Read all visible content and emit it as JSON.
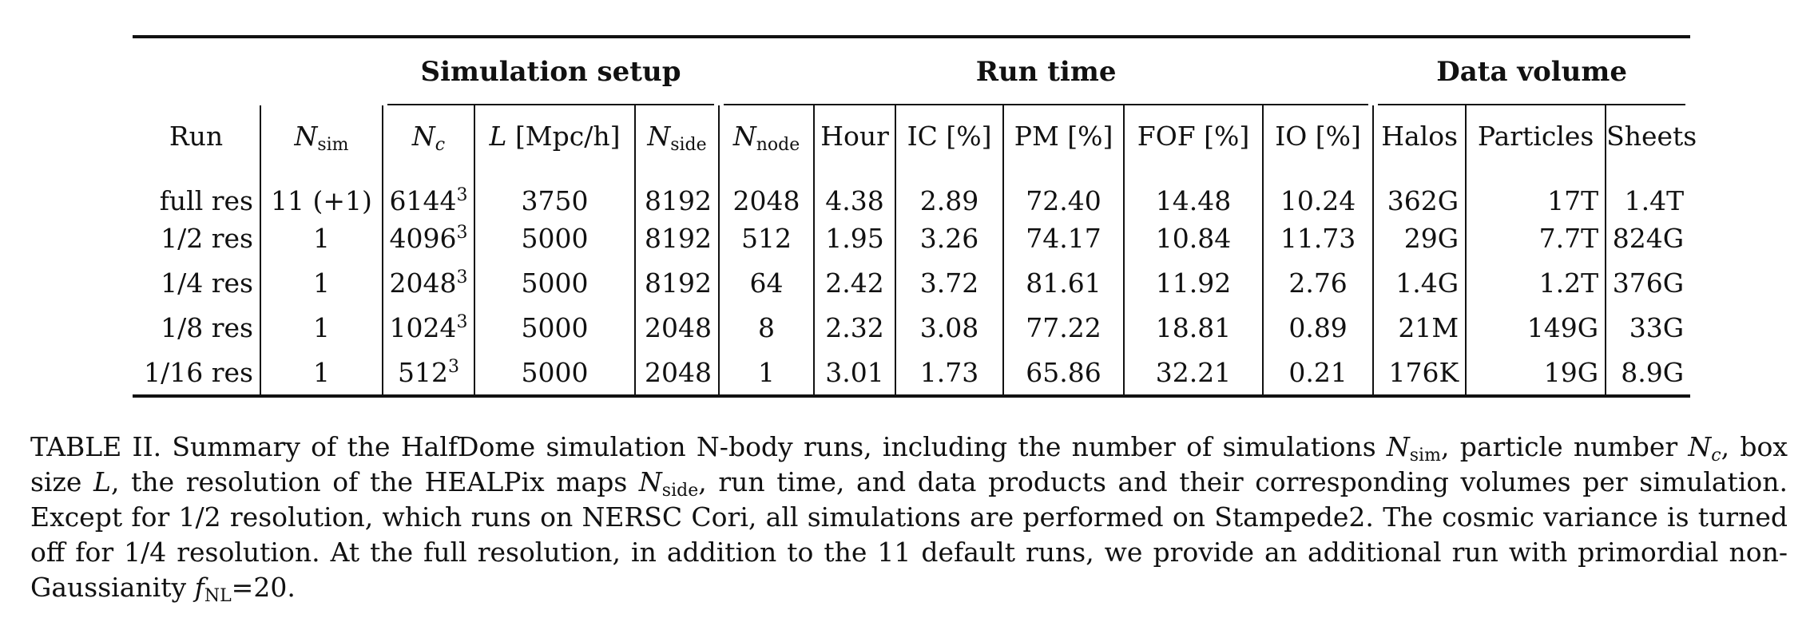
{
  "table": {
    "groups": {
      "setup": "Simulation setup",
      "runtime": "Run time",
      "volume": "Data volume"
    },
    "headers": {
      "run": "Run",
      "nsim_base": "N",
      "nsim_sub": "sim",
      "nc_base": "N",
      "nc_sub": "c",
      "L_base": "L",
      "L_unit": "[Mpc/h]",
      "nside_base": "N",
      "nside_sub": "side",
      "nnode_base": "N",
      "nnode_sub": "node",
      "hour": "Hour",
      "ic": "IC [%]",
      "pm": "PM [%]",
      "fof": "FOF [%]",
      "io": "IO [%]",
      "halos": "Halos",
      "particles": "Particles",
      "sheets": "Sheets"
    },
    "rows": [
      {
        "run": "full res",
        "nsim": "11 (+1)",
        "nc": "6144",
        "nc_exp": "3",
        "L": "3750",
        "nside": "8192",
        "nnode": "2048",
        "hour": "4.38",
        "ic": "2.89",
        "pm": "72.40",
        "fof": "14.48",
        "io": "10.24",
        "halos": "362G",
        "particles": "17T",
        "sheets": "1.4T"
      },
      {
        "run": "1/2 res",
        "nsim": "1",
        "nc": "4096",
        "nc_exp": "3",
        "L": "5000",
        "nside": "8192",
        "nnode": "512",
        "hour": "1.95",
        "ic": "3.26",
        "pm": "74.17",
        "fof": "10.84",
        "io": "11.73",
        "halos": "29G",
        "particles": "7.7T",
        "sheets": "824G"
      },
      {
        "run": "1/4 res",
        "nsim": "1",
        "nc": "2048",
        "nc_exp": "3",
        "L": "5000",
        "nside": "8192",
        "nnode": "64",
        "hour": "2.42",
        "ic": "3.72",
        "pm": "81.61",
        "fof": "11.92",
        "io": "2.76",
        "halos": "1.4G",
        "particles": "1.2T",
        "sheets": "376G"
      },
      {
        "run": "1/8 res",
        "nsim": "1",
        "nc": "1024",
        "nc_exp": "3",
        "L": "5000",
        "nside": "2048",
        "nnode": "8",
        "hour": "2.32",
        "ic": "3.08",
        "pm": "77.22",
        "fof": "18.81",
        "io": "0.89",
        "halos": "21M",
        "particles": "149G",
        "sheets": "33G"
      },
      {
        "run": "1/16 res",
        "nsim": "1",
        "nc": "512",
        "nc_exp": "3",
        "L": "5000",
        "nside": "2048",
        "nnode": "1",
        "hour": "3.01",
        "ic": "1.73",
        "pm": "65.86",
        "fof": "32.21",
        "io": "0.21",
        "halos": "176K",
        "particles": "19G",
        "sheets": "8.9G"
      }
    ]
  },
  "caption": {
    "t1": "TABLE II. Summary of the HalfDome simulation N-body runs, including the number of simulations ",
    "nsim_base": "N",
    "nsim_sub": "sim",
    "t2": ", particle number ",
    "nc_base": "N",
    "nc_sub": "c",
    "t3": ", box size ",
    "L": "L",
    "t4": ", the resolution of the HEALPix maps ",
    "nside_base": "N",
    "nside_sub": "side",
    "t5": ", run time, and data products and their corresponding volumes per simulation. Except for 1/2 resolution, which runs on NERSC Cori, all simulations are performed on Stampede2. The cosmic variance is turned off for 1/4 resolution. At the full resolution, in addition to the 11 default runs, we provide an additional run with primordial non-Gaussianity ",
    "fnl_base": "f",
    "fnl_sub": "NL",
    "t6": "=20."
  }
}
